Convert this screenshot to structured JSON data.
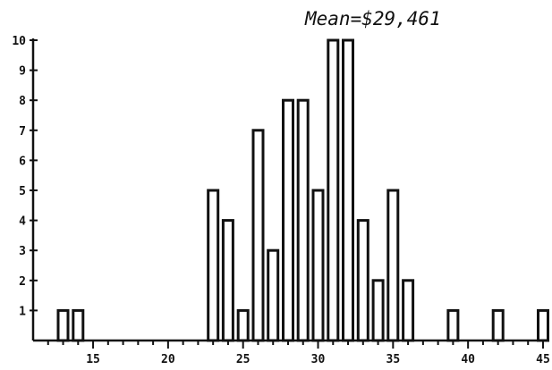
{
  "chart_data": {
    "type": "bar",
    "title": "Mean=$29,461",
    "xlabel": "",
    "ylabel": "",
    "xlim": [
      11,
      45.3
    ],
    "ylim": [
      0,
      10
    ],
    "x_ticks": [
      15,
      20,
      25,
      30,
      35,
      40,
      45
    ],
    "y_ticks": [
      1,
      2,
      3,
      4,
      5,
      6,
      7,
      8,
      9,
      10
    ],
    "grid": false,
    "legend": "none",
    "bar_color": "#ffffff",
    "edge_color": "#111111",
    "series": [
      {
        "x": [
          13,
          14,
          23,
          24,
          25,
          26,
          27,
          28,
          29,
          30,
          31,
          32,
          33,
          34,
          35,
          36,
          39,
          42,
          45
        ],
        "values": [
          1,
          1,
          5,
          4,
          1,
          7,
          3,
          8,
          8,
          5,
          10,
          10,
          4,
          2,
          5,
          2,
          1,
          1,
          1
        ]
      }
    ]
  }
}
